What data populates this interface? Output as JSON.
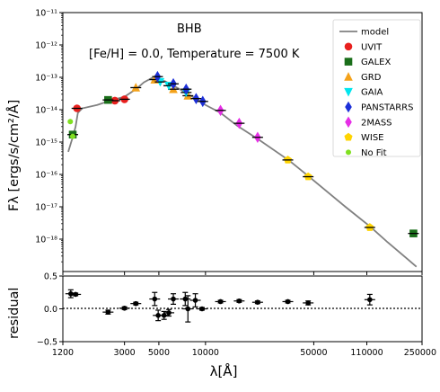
{
  "chart_data": {
    "type": "scatter",
    "title": "BHB",
    "subtitle": "[Fe/H] =  0.0, Temperature = 7500 K",
    "xlabel": "λ[Å]",
    "ylabel": "Fλ [ergs/s/cm²/Å]",
    "residual_ylabel": "residual",
    "x_scale": "log",
    "y_scale": "log",
    "xlim": [
      1200,
      250000
    ],
    "ylim": [
      1e-19,
      1e-11
    ],
    "residual_ylim": [
      -0.5,
      0.5
    ],
    "x_ticks": [
      1200,
      3000,
      5000,
      10000,
      50000,
      110000,
      250000
    ],
    "x_tick_labels": [
      "1200",
      "3000",
      "5000",
      "10000",
      "50000",
      "110000",
      "250000"
    ],
    "y_ticks": [
      1e-11,
      1e-12,
      1e-13,
      1e-14,
      1e-15,
      1e-16,
      1e-17,
      1e-18
    ],
    "y_tick_labels": [
      "10⁻¹¹",
      "10⁻¹²",
      "10⁻¹³",
      "10⁻¹⁴",
      "10⁻¹⁵",
      "10⁻¹⁶",
      "10⁻¹⁷",
      "10⁻¹⁸"
    ],
    "residual_ticks": [
      0.5,
      0.0,
      -0.5
    ],
    "residual_tick_labels": [
      "0.5",
      "0.0",
      "−0.5"
    ],
    "legend_position": "top-right",
    "legend": [
      "model",
      "UVIT",
      "GALEX",
      "GRD",
      "GAIA",
      "PANSTARRS",
      "2MASS",
      "WISE",
      "No Fit"
    ],
    "grid": false,
    "colors": {
      "model": "#808080",
      "UVIT": "#e8201e",
      "GALEX": "#1a6e1a",
      "GRD": "#f4a21a",
      "GAIA": "#00e5ee",
      "PANSTARRS": "#1c2fd8",
      "2MASS": "#e62ee6",
      "WISE": "#ffd400",
      "No Fit": "#80e020"
    },
    "model": {
      "x": [
        1300,
        1400,
        1450,
        1500,
        1600,
        2000,
        2500,
        3000,
        3600,
        4000,
        4500,
        5000,
        5500,
        6200,
        7000,
        8000,
        9000,
        10000,
        12500,
        16000,
        22000,
        35000,
        46000,
        80000,
        115000,
        150000,
        200000,
        230000
      ],
      "y": [
        5e-16,
        1.6e-15,
        3e-15,
        8e-15,
        1.1e-14,
        1.4e-14,
        2e-14,
        2.5e-14,
        4.5e-14,
        7e-14,
        9.5e-14,
        8.5e-14,
        7.5e-14,
        5.5e-14,
        4e-14,
        2.7e-14,
        2e-14,
        1.4e-14,
        8e-15,
        3.2e-15,
        1.2e-15,
        2.6e-16,
        9e-17,
        1e-17,
        2.5e-18,
        8e-19,
        2.5e-19,
        1.4e-19
      ]
    },
    "series": [
      {
        "name": "UVIT",
        "marker": "circle",
        "points": [
          {
            "x": 1480,
            "y": 1.1e-14,
            "residual": 0.23
          },
          {
            "x": 2600,
            "y": 1.9e-14,
            "residual": -0.05
          },
          {
            "x": 3000,
            "y": 2.1e-14,
            "residual": 0.01
          }
        ]
      },
      {
        "name": "GALEX",
        "marker": "square",
        "points": [
          {
            "x": 1390,
            "y": 1.7e-15,
            "residual": 0.22
          },
          {
            "x": 2350,
            "y": 2e-14,
            "residual": -0.05
          },
          {
            "x": 220000,
            "y": 1.5e-18,
            "residual": null
          }
        ]
      },
      {
        "name": "GRD",
        "marker": "triangle",
        "points": [
          {
            "x": 3550,
            "y": 4.8e-14,
            "residual": 0.08
          },
          {
            "x": 4700,
            "y": 8.5e-14,
            "residual": 0.15
          },
          {
            "x": 6200,
            "y": 4.3e-14,
            "residual": -0.08
          },
          {
            "x": 7700,
            "y": 2.7e-14,
            "residual": 0.15
          }
        ]
      },
      {
        "name": "GAIA",
        "marker": "triangle-down",
        "points": [
          {
            "x": 5100,
            "y": 7.2e-14,
            "residual": 0.0
          },
          {
            "x": 5800,
            "y": 5.5e-14,
            "residual": -0.08
          },
          {
            "x": 7500,
            "y": 3.4e-14,
            "residual": 0.01
          }
        ]
      },
      {
        "name": "PANSTARRS",
        "marker": "diamond",
        "points": [
          {
            "x": 4900,
            "y": 1.05e-13,
            "residual": -0.1
          },
          {
            "x": 6200,
            "y": 6.3e-14,
            "residual": 0.15
          },
          {
            "x": 7500,
            "y": 4.3e-14,
            "residual": 0.03
          },
          {
            "x": 8700,
            "y": 2.2e-14,
            "residual": 0.13
          },
          {
            "x": 9600,
            "y": 1.8e-14,
            "residual": 0.0
          }
        ]
      },
      {
        "name": "2MASS",
        "marker": "diamond",
        "points": [
          {
            "x": 12500,
            "y": 9.5e-15,
            "residual": 0.11
          },
          {
            "x": 16500,
            "y": 3.8e-15,
            "residual": 0.12
          },
          {
            "x": 21700,
            "y": 1.4e-15,
            "residual": 0.1
          }
        ]
      },
      {
        "name": "WISE",
        "marker": "pentagon",
        "points": [
          {
            "x": 34000,
            "y": 2.8e-16,
            "residual": 0.11
          },
          {
            "x": 46000,
            "y": 8.5e-17,
            "residual": 0.1
          },
          {
            "x": 115000,
            "y": 2.3e-18,
            "residual": 0.14
          }
        ]
      },
      {
        "name": "No Fit",
        "marker": "circle-small",
        "points": [
          {
            "x": 1340,
            "y": 4.3e-15,
            "residual": null
          },
          {
            "x": 1390,
            "y": 1.5e-15,
            "residual": null
          }
        ]
      }
    ],
    "residual_points": [
      {
        "x": 1350,
        "y": 0.23,
        "err": 0.06
      },
      {
        "x": 1450,
        "y": 0.22,
        "err": 0.02
      },
      {
        "x": 2350,
        "y": -0.05,
        "err": 0.03
      },
      {
        "x": 3000,
        "y": 0.01,
        "err": 0.02
      },
      {
        "x": 3550,
        "y": 0.08,
        "err": 0.02
      },
      {
        "x": 4700,
        "y": 0.15,
        "err": 0.1
      },
      {
        "x": 4950,
        "y": -0.1,
        "err": 0.08
      },
      {
        "x": 5400,
        "y": -0.1,
        "err": 0.06
      },
      {
        "x": 5800,
        "y": -0.06,
        "err": 0.05
      },
      {
        "x": 6200,
        "y": 0.15,
        "err": 0.08
      },
      {
        "x": 7400,
        "y": 0.15,
        "err": 0.1
      },
      {
        "x": 7700,
        "y": 0.0,
        "err": 0.2
      },
      {
        "x": 8600,
        "y": 0.13,
        "err": 0.1
      },
      {
        "x": 9500,
        "y": 0.0,
        "err": 0.02
      },
      {
        "x": 12500,
        "y": 0.11,
        "err": 0.02
      },
      {
        "x": 16500,
        "y": 0.12,
        "err": 0.02
      },
      {
        "x": 21700,
        "y": 0.1,
        "err": 0.02
      },
      {
        "x": 34000,
        "y": 0.11,
        "err": 0.02
      },
      {
        "x": 46000,
        "y": 0.09,
        "err": 0.03
      },
      {
        "x": 115000,
        "y": 0.14,
        "err": 0.08
      }
    ]
  }
}
